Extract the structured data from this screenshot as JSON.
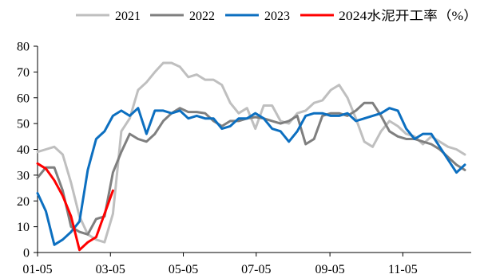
{
  "chart_data": {
    "type": "line",
    "title": "",
    "xlabel": "",
    "ylabel": "",
    "ylim": [
      0,
      80
    ],
    "yticks": [
      0,
      10,
      20,
      30,
      40,
      50,
      60,
      70,
      80
    ],
    "xlim": [
      1,
      52
    ],
    "x_tick_positions": [
      1,
      9.7,
      18.4,
      27.1,
      35.9,
      44.6
    ],
    "x_tick_labels": [
      "01-05",
      "03-05",
      "05-05",
      "07-05",
      "09-05",
      "11-05"
    ],
    "grid": false,
    "legend_position": "top",
    "series": [
      {
        "name": "2021",
        "color": "#bfbfbf",
        "x": [
          1,
          2,
          3,
          4,
          5,
          6,
          7,
          8,
          9,
          10,
          11,
          12,
          13,
          14,
          15,
          16,
          17,
          18,
          19,
          20,
          21,
          22,
          23,
          24,
          25,
          26,
          27,
          28,
          29,
          30,
          31,
          32,
          33,
          34,
          35,
          36,
          37,
          38,
          39,
          40,
          41,
          42,
          43,
          44,
          45,
          46,
          47,
          48,
          49,
          50,
          51,
          52
        ],
        "values": [
          39,
          40,
          41,
          38,
          27,
          14,
          7,
          5,
          4,
          15,
          47,
          52,
          63,
          66,
          70,
          73.5,
          73.5,
          72,
          68,
          69,
          67,
          67,
          65,
          58,
          54,
          56,
          48,
          57,
          57,
          51,
          50,
          54,
          55,
          58,
          59,
          63,
          65,
          60,
          52,
          43,
          41,
          47,
          51,
          49,
          46,
          45,
          42,
          45,
          43,
          41,
          40,
          38
        ]
      },
      {
        "name": "2022",
        "color": "#7f7f7f",
        "x": [
          1,
          2,
          3,
          4,
          5,
          6,
          7,
          8,
          9,
          10,
          11,
          12,
          13,
          14,
          15,
          16,
          17,
          18,
          19,
          20,
          21,
          22,
          23,
          24,
          25,
          26,
          27,
          28,
          29,
          30,
          31,
          32,
          33,
          34,
          35,
          36,
          37,
          38,
          39,
          40,
          41,
          42,
          43,
          44,
          45,
          46,
          47,
          48,
          49,
          50,
          51,
          52
        ],
        "values": [
          29,
          33,
          33,
          24,
          10,
          8,
          7,
          13,
          14,
          31,
          39,
          46,
          44,
          43,
          46,
          51,
          54,
          56,
          54.5,
          54.5,
          54,
          51,
          49,
          51,
          51,
          52,
          52.5,
          52,
          51,
          50,
          51,
          53,
          42,
          44,
          53,
          54,
          54,
          53,
          55,
          58,
          58,
          53,
          47,
          45,
          44,
          44,
          43,
          42,
          40,
          37,
          34,
          32
        ]
      },
      {
        "name": "2023",
        "color": "#0c6fc0",
        "x": [
          1,
          2,
          3,
          4,
          5,
          6,
          7,
          8,
          9,
          10,
          11,
          12,
          13,
          14,
          15,
          16,
          17,
          18,
          19,
          20,
          21,
          22,
          23,
          24,
          25,
          26,
          27,
          28,
          29,
          30,
          31,
          32,
          33,
          34,
          35,
          36,
          37,
          38,
          39,
          40,
          41,
          42,
          43,
          44,
          45,
          46,
          47,
          48,
          49,
          50,
          51,
          52
        ],
        "values": [
          23,
          16,
          3,
          5,
          8,
          12,
          32,
          44,
          47,
          53,
          55,
          53,
          56,
          46,
          55,
          55,
          54,
          55,
          52,
          53,
          52,
          52,
          48,
          49,
          52,
          52,
          54,
          52,
          48,
          47,
          43,
          47,
          53,
          54,
          54,
          53,
          53,
          54,
          51,
          52,
          53,
          54,
          56,
          55,
          48,
          44,
          46,
          46,
          41,
          36,
          31,
          34
        ]
      },
      {
        "name": "2024水泥开工率（%）",
        "color": "#ff0000",
        "x": [
          1,
          2,
          3,
          4,
          5,
          6,
          7,
          8,
          9,
          10
        ],
        "values": [
          34.5,
          32.5,
          28,
          22,
          14,
          1,
          4,
          6,
          15,
          24
        ]
      }
    ]
  }
}
